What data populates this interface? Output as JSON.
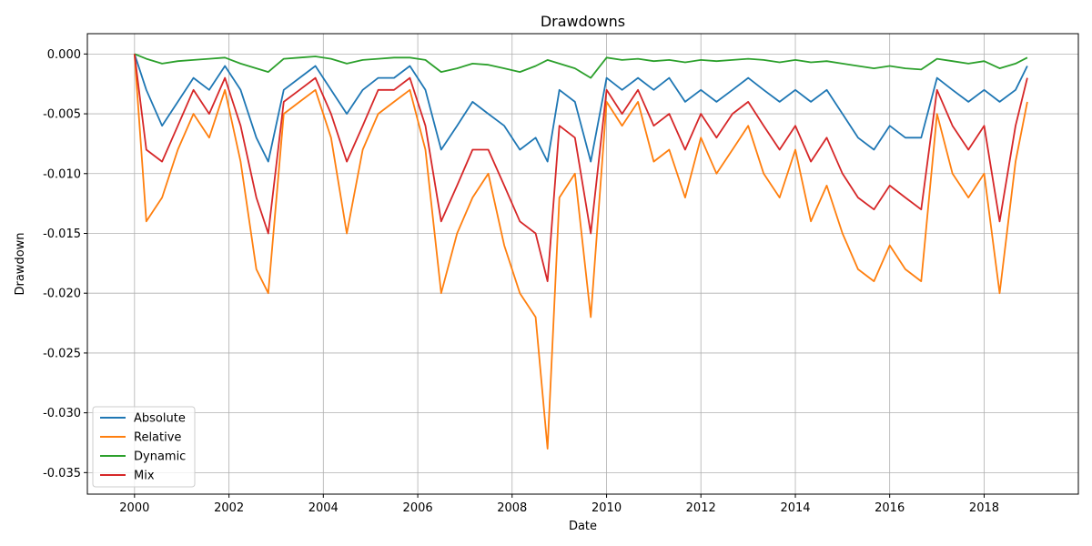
{
  "chart_data": {
    "type": "line",
    "title": "Drawdowns",
    "xlabel": "Date",
    "ylabel": "Drawdown",
    "xlim": [
      "1999-01-01",
      "2019-12-31"
    ],
    "ylim": [
      -0.0368,
      0.0017
    ],
    "xticks": [
      "2000",
      "2002",
      "2004",
      "2006",
      "2008",
      "2010",
      "2012",
      "2014",
      "2016",
      "2018"
    ],
    "yticks": [
      "0.000",
      "-0.005",
      "-0.010",
      "-0.015",
      "-0.020",
      "-0.025",
      "-0.030",
      "-0.035"
    ],
    "grid": true,
    "legend_position": "lower-left",
    "series": [
      {
        "name": "Absolute",
        "color": "#1f77b4",
        "x": [
          "2000-01",
          "2000-04",
          "2000-08",
          "2000-12",
          "2001-04",
          "2001-08",
          "2001-12",
          "2002-04",
          "2002-08",
          "2002-11",
          "2003-03",
          "2003-07",
          "2003-11",
          "2004-03",
          "2004-07",
          "2004-11",
          "2005-03",
          "2005-07",
          "2005-11",
          "2006-03",
          "2006-07",
          "2006-11",
          "2007-03",
          "2007-07",
          "2007-11",
          "2008-03",
          "2008-07",
          "2008-10",
          "2009-01",
          "2009-05",
          "2009-09",
          "2010-01",
          "2010-05",
          "2010-09",
          "2011-01",
          "2011-05",
          "2011-09",
          "2012-01",
          "2012-05",
          "2012-09",
          "2013-01",
          "2013-05",
          "2013-09",
          "2014-01",
          "2014-05",
          "2014-09",
          "2015-01",
          "2015-05",
          "2015-09",
          "2016-01",
          "2016-05",
          "2016-09",
          "2017-01",
          "2017-05",
          "2017-09",
          "2018-01",
          "2018-05",
          "2018-09",
          "2018-12"
        ],
        "y": [
          0,
          -0.003,
          -0.006,
          -0.004,
          -0.002,
          -0.003,
          -0.001,
          -0.003,
          -0.007,
          -0.009,
          -0.003,
          -0.002,
          -0.001,
          -0.003,
          -0.005,
          -0.003,
          -0.002,
          -0.002,
          -0.001,
          -0.003,
          -0.008,
          -0.006,
          -0.004,
          -0.005,
          -0.006,
          -0.008,
          -0.007,
          -0.009,
          -0.003,
          -0.004,
          -0.009,
          -0.002,
          -0.003,
          -0.002,
          -0.003,
          -0.002,
          -0.004,
          -0.003,
          -0.004,
          -0.003,
          -0.002,
          -0.003,
          -0.004,
          -0.003,
          -0.004,
          -0.003,
          -0.005,
          -0.007,
          -0.008,
          -0.006,
          -0.007,
          -0.007,
          -0.002,
          -0.003,
          -0.004,
          -0.003,
          -0.004,
          -0.003,
          -0.001
        ]
      },
      {
        "name": "Relative",
        "color": "#ff7f0e",
        "x": [
          "2000-01",
          "2000-04",
          "2000-08",
          "2000-12",
          "2001-04",
          "2001-08",
          "2001-12",
          "2002-04",
          "2002-08",
          "2002-11",
          "2003-03",
          "2003-07",
          "2003-11",
          "2004-03",
          "2004-07",
          "2004-11",
          "2005-03",
          "2005-07",
          "2005-11",
          "2006-03",
          "2006-07",
          "2006-11",
          "2007-03",
          "2007-07",
          "2007-11",
          "2008-03",
          "2008-07",
          "2008-10",
          "2009-01",
          "2009-05",
          "2009-09",
          "2010-01",
          "2010-05",
          "2010-09",
          "2011-01",
          "2011-05",
          "2011-09",
          "2012-01",
          "2012-05",
          "2012-09",
          "2013-01",
          "2013-05",
          "2013-09",
          "2014-01",
          "2014-05",
          "2014-09",
          "2015-01",
          "2015-05",
          "2015-09",
          "2016-01",
          "2016-05",
          "2016-09",
          "2017-01",
          "2017-05",
          "2017-09",
          "2018-01",
          "2018-05",
          "2018-09",
          "2018-12"
        ],
        "y": [
          0,
          -0.014,
          -0.012,
          -0.008,
          -0.005,
          -0.007,
          -0.003,
          -0.009,
          -0.018,
          -0.02,
          -0.005,
          -0.004,
          -0.003,
          -0.007,
          -0.015,
          -0.008,
          -0.005,
          -0.004,
          -0.003,
          -0.008,
          -0.02,
          -0.015,
          -0.012,
          -0.01,
          -0.016,
          -0.02,
          -0.022,
          -0.033,
          -0.012,
          -0.01,
          -0.022,
          -0.004,
          -0.006,
          -0.004,
          -0.009,
          -0.008,
          -0.012,
          -0.007,
          -0.01,
          -0.008,
          -0.006,
          -0.01,
          -0.012,
          -0.008,
          -0.014,
          -0.011,
          -0.015,
          -0.018,
          -0.019,
          -0.016,
          -0.018,
          -0.019,
          -0.005,
          -0.01,
          -0.012,
          -0.01,
          -0.02,
          -0.009,
          -0.004
        ]
      },
      {
        "name": "Dynamic",
        "color": "#2ca02c",
        "x": [
          "2000-01",
          "2000-04",
          "2000-08",
          "2000-12",
          "2001-04",
          "2001-08",
          "2001-12",
          "2002-04",
          "2002-08",
          "2002-11",
          "2003-03",
          "2003-07",
          "2003-11",
          "2004-03",
          "2004-07",
          "2004-11",
          "2005-03",
          "2005-07",
          "2005-11",
          "2006-03",
          "2006-07",
          "2006-11",
          "2007-03",
          "2007-07",
          "2007-11",
          "2008-03",
          "2008-07",
          "2008-10",
          "2009-01",
          "2009-05",
          "2009-09",
          "2010-01",
          "2010-05",
          "2010-09",
          "2011-01",
          "2011-05",
          "2011-09",
          "2012-01",
          "2012-05",
          "2012-09",
          "2013-01",
          "2013-05",
          "2013-09",
          "2014-01",
          "2014-05",
          "2014-09",
          "2015-01",
          "2015-05",
          "2015-09",
          "2016-01",
          "2016-05",
          "2016-09",
          "2017-01",
          "2017-05",
          "2017-09",
          "2018-01",
          "2018-05",
          "2018-09",
          "2018-12"
        ],
        "y": [
          0,
          -0.0004,
          -0.0008,
          -0.0006,
          -0.0005,
          -0.0004,
          -0.0003,
          -0.0008,
          -0.0012,
          -0.0015,
          -0.0004,
          -0.0003,
          -0.0002,
          -0.0004,
          -0.0008,
          -0.0005,
          -0.0004,
          -0.0003,
          -0.0003,
          -0.0005,
          -0.0015,
          -0.0012,
          -0.0008,
          -0.0009,
          -0.0012,
          -0.0015,
          -0.001,
          -0.0005,
          -0.0008,
          -0.0012,
          -0.002,
          -0.0003,
          -0.0005,
          -0.0004,
          -0.0006,
          -0.0005,
          -0.0007,
          -0.0005,
          -0.0006,
          -0.0005,
          -0.0004,
          -0.0005,
          -0.0007,
          -0.0005,
          -0.0007,
          -0.0006,
          -0.0008,
          -0.001,
          -0.0012,
          -0.001,
          -0.0012,
          -0.0013,
          -0.0004,
          -0.0006,
          -0.0008,
          -0.0006,
          -0.0012,
          -0.0008,
          -0.0003
        ]
      },
      {
        "name": "Mix",
        "color": "#d62728",
        "x": [
          "2000-01",
          "2000-04",
          "2000-08",
          "2000-12",
          "2001-04",
          "2001-08",
          "2001-12",
          "2002-04",
          "2002-08",
          "2002-11",
          "2003-03",
          "2003-07",
          "2003-11",
          "2004-03",
          "2004-07",
          "2004-11",
          "2005-03",
          "2005-07",
          "2005-11",
          "2006-03",
          "2006-07",
          "2006-11",
          "2007-03",
          "2007-07",
          "2007-11",
          "2008-03",
          "2008-07",
          "2008-10",
          "2009-01",
          "2009-05",
          "2009-09",
          "2010-01",
          "2010-05",
          "2010-09",
          "2011-01",
          "2011-05",
          "2011-09",
          "2012-01",
          "2012-05",
          "2012-09",
          "2013-01",
          "2013-05",
          "2013-09",
          "2014-01",
          "2014-05",
          "2014-09",
          "2015-01",
          "2015-05",
          "2015-09",
          "2016-01",
          "2016-05",
          "2016-09",
          "2017-01",
          "2017-05",
          "2017-09",
          "2018-01",
          "2018-05",
          "2018-09",
          "2018-12"
        ],
        "y": [
          0,
          -0.008,
          -0.009,
          -0.006,
          -0.003,
          -0.005,
          -0.002,
          -0.006,
          -0.012,
          -0.015,
          -0.004,
          -0.003,
          -0.002,
          -0.005,
          -0.009,
          -0.006,
          -0.003,
          -0.003,
          -0.002,
          -0.006,
          -0.014,
          -0.011,
          -0.008,
          -0.008,
          -0.011,
          -0.014,
          -0.015,
          -0.019,
          -0.006,
          -0.007,
          -0.015,
          -0.003,
          -0.005,
          -0.003,
          -0.006,
          -0.005,
          -0.008,
          -0.005,
          -0.007,
          -0.005,
          -0.004,
          -0.006,
          -0.008,
          -0.006,
          -0.009,
          -0.007,
          -0.01,
          -0.012,
          -0.013,
          -0.011,
          -0.012,
          -0.013,
          -0.003,
          -0.006,
          -0.008,
          -0.006,
          -0.014,
          -0.006,
          -0.002
        ]
      }
    ]
  }
}
